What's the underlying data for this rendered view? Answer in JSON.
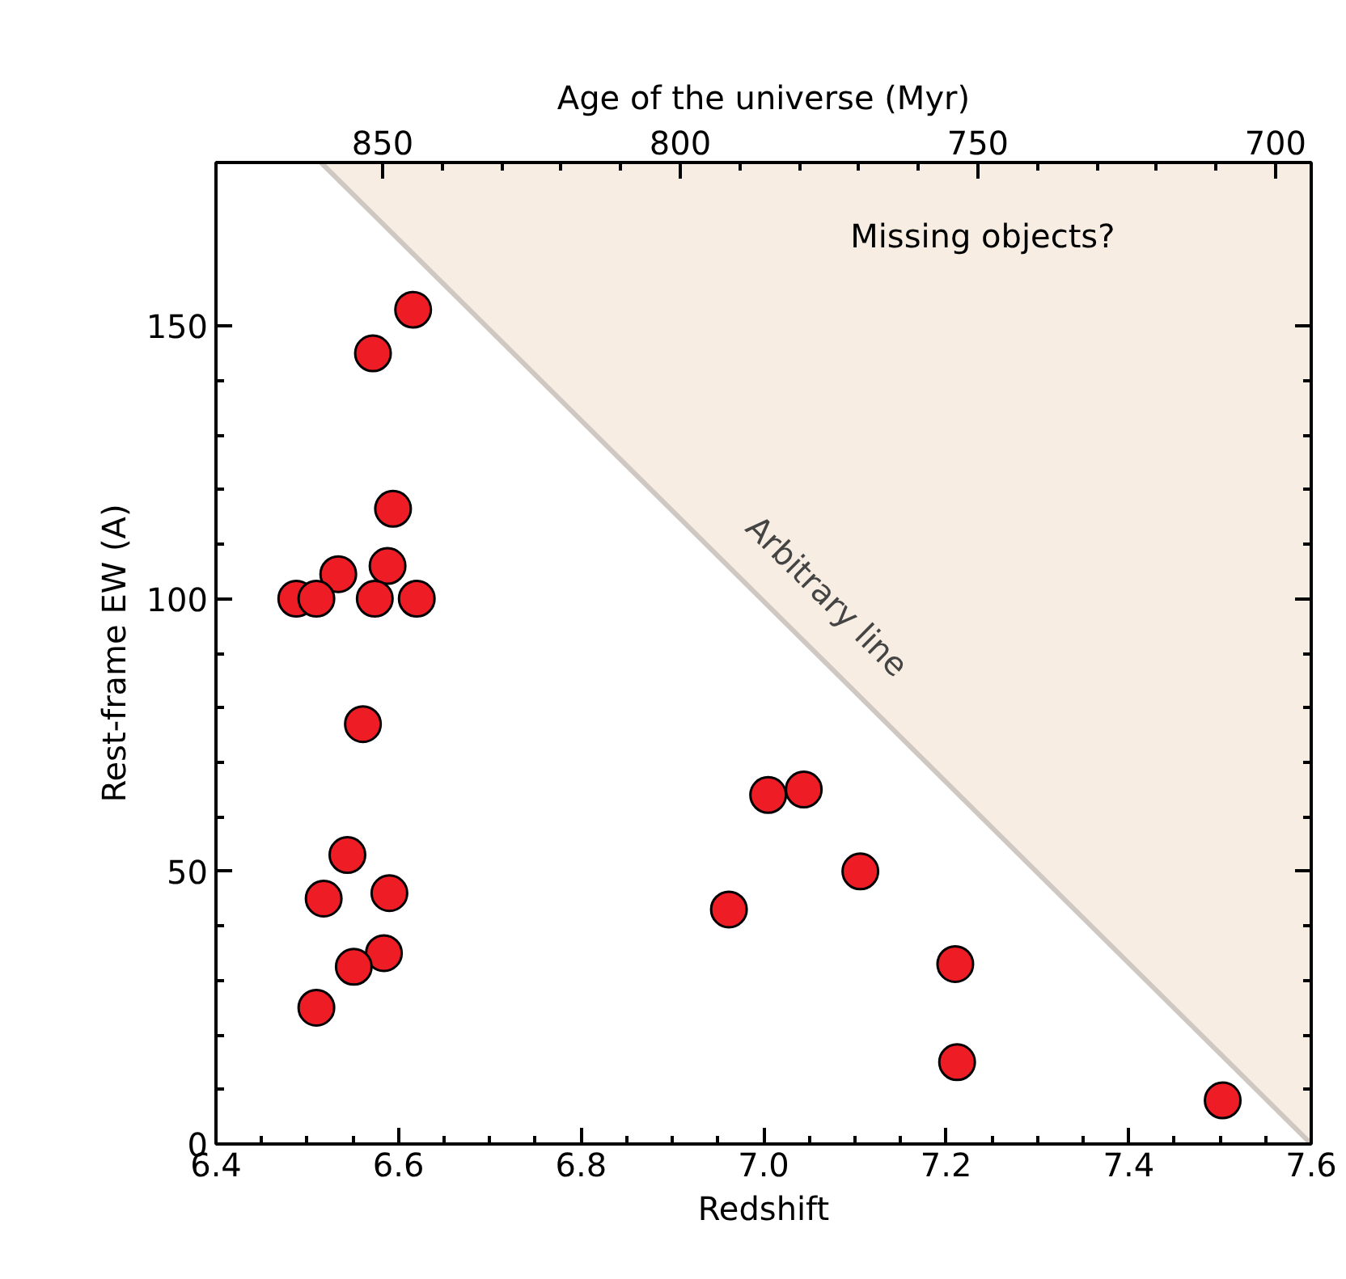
{
  "chart_data": {
    "type": "scatter",
    "xlabel": "Redshift",
    "ylabel": "Rest-frame EW (A)",
    "x2label": "Age of the universe (Myr)",
    "xlim": [
      6.4,
      7.6
    ],
    "xticks": [
      6.4,
      6.6,
      6.8,
      {
        "value": 7,
        "label": "7.0"
      },
      7.2,
      7.4,
      7.6
    ],
    "ylim": [
      0,
      180
    ],
    "yticks": [
      0,
      50,
      100,
      150
    ],
    "x2lim": [
      878,
      694
    ],
    "x2ticks": [
      850,
      800,
      750,
      700
    ],
    "grid": false,
    "annotations": [
      "Missing objects?"
    ],
    "series": [
      {
        "marker": "circle",
        "color": "#ee1c25",
        "x": [
          6.616,
          6.572,
          6.594,
          6.588,
          6.534,
          6.488,
          6.51,
          6.574,
          6.62,
          6.561,
          6.544,
          6.518,
          6.59,
          6.584,
          6.551,
          6.51,
          6.962,
          7.005,
          7.044,
          7.106,
          7.21,
          7.212,
          7.503
        ],
        "values": [
          153,
          145,
          116.5,
          106,
          104.5,
          100,
          100,
          100,
          100,
          77,
          53,
          45,
          46,
          35,
          32.5,
          25,
          43,
          64,
          65,
          50,
          33,
          15,
          8
        ]
      },
      {
        "type": "line",
        "name": "Arbitrary line",
        "color": "#cfc7c2",
        "x": [
          6.515,
          7.6
        ],
        "values": [
          180,
          0
        ],
        "lower": [
          180,
          0
        ],
        "upper": [
          180,
          180
        ]
      }
    ]
  }
}
